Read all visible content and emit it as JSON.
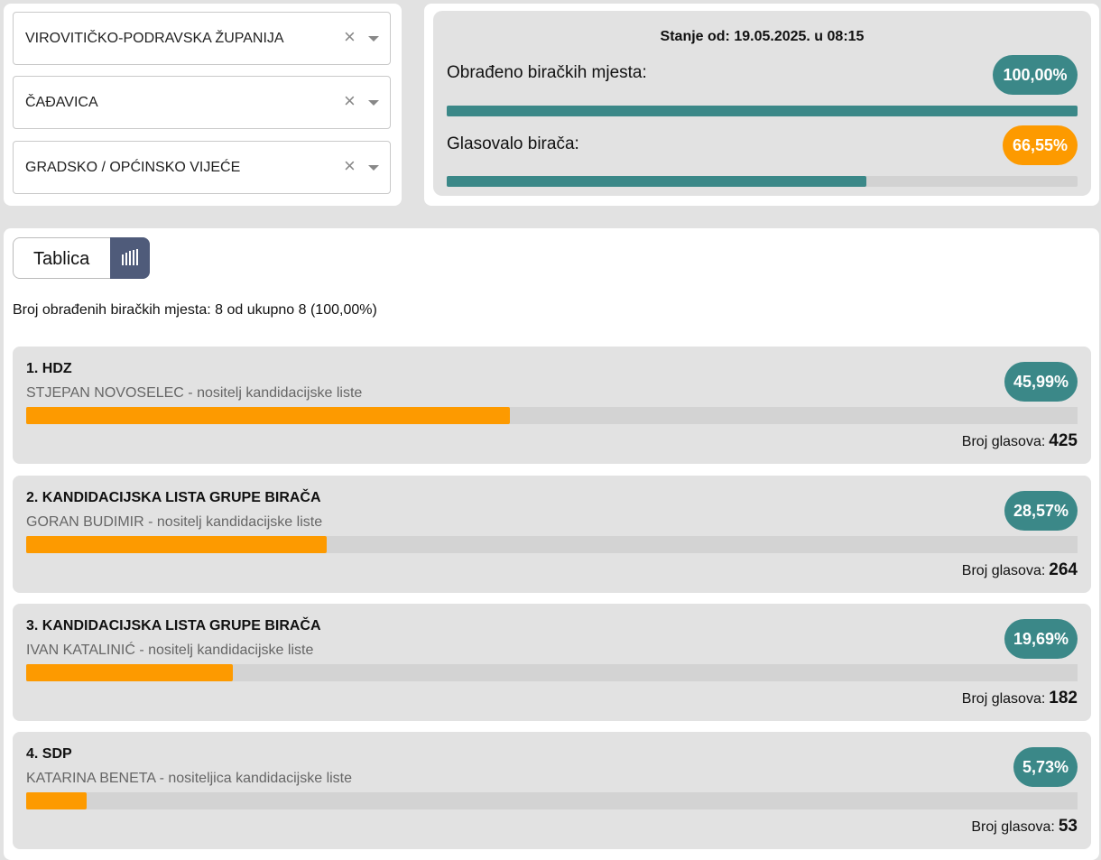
{
  "filters": {
    "county": "VIROVITIČKO-PODRAVSKA ŽUPANIJA",
    "municipality": "ČAĐAVICA",
    "election_type": "GRADSKO / OPĆINSKO VIJEĆE",
    "clear_symbol": "×"
  },
  "status": {
    "timestamp": "Stanje od: 19.05.2025. u 08:15",
    "processed_label": "Obrađeno biračkih mjesta:",
    "processed_percent": "100,00%",
    "processed_fraction": 1.0,
    "turnout_label": "Glasovalo birača:",
    "turnout_percent": "66,55%",
    "turnout_fraction": 0.6655
  },
  "view_toggle": {
    "label": "Tablica",
    "chart_icon": "bar-chart-icon"
  },
  "processed_text": "Broj obrađenih biračkih mjesta: 8 od ukupno 8 (100,00%)",
  "votes_label": "Broj glasova:",
  "results": [
    {
      "title": "1. HDZ",
      "leader": "STJEPAN NOVOSELEC - nositelj kandidacijske liste",
      "percent": "45,99%",
      "fraction": 0.4599,
      "votes": "425"
    },
    {
      "title": "2. KANDIDACIJSKA LISTA GRUPE BIRAČA",
      "leader": "GORAN BUDIMIR - nositelj kandidacijske liste",
      "percent": "28,57%",
      "fraction": 0.2857,
      "votes": "264"
    },
    {
      "title": "3. KANDIDACIJSKA LISTA GRUPE BIRAČA",
      "leader": "IVAN KATALINIĆ - nositelj kandidacijske liste",
      "percent": "19,69%",
      "fraction": 0.1969,
      "votes": "182"
    },
    {
      "title": "4. SDP",
      "leader": "KATARINA BENETA - nositeljica kandidacijske liste",
      "percent": "5,73%",
      "fraction": 0.0573,
      "votes": "53"
    }
  ],
  "colors": {
    "teal": "#3b8888",
    "orange": "#fd9a00",
    "toggle_dark": "#4f5b7a"
  }
}
